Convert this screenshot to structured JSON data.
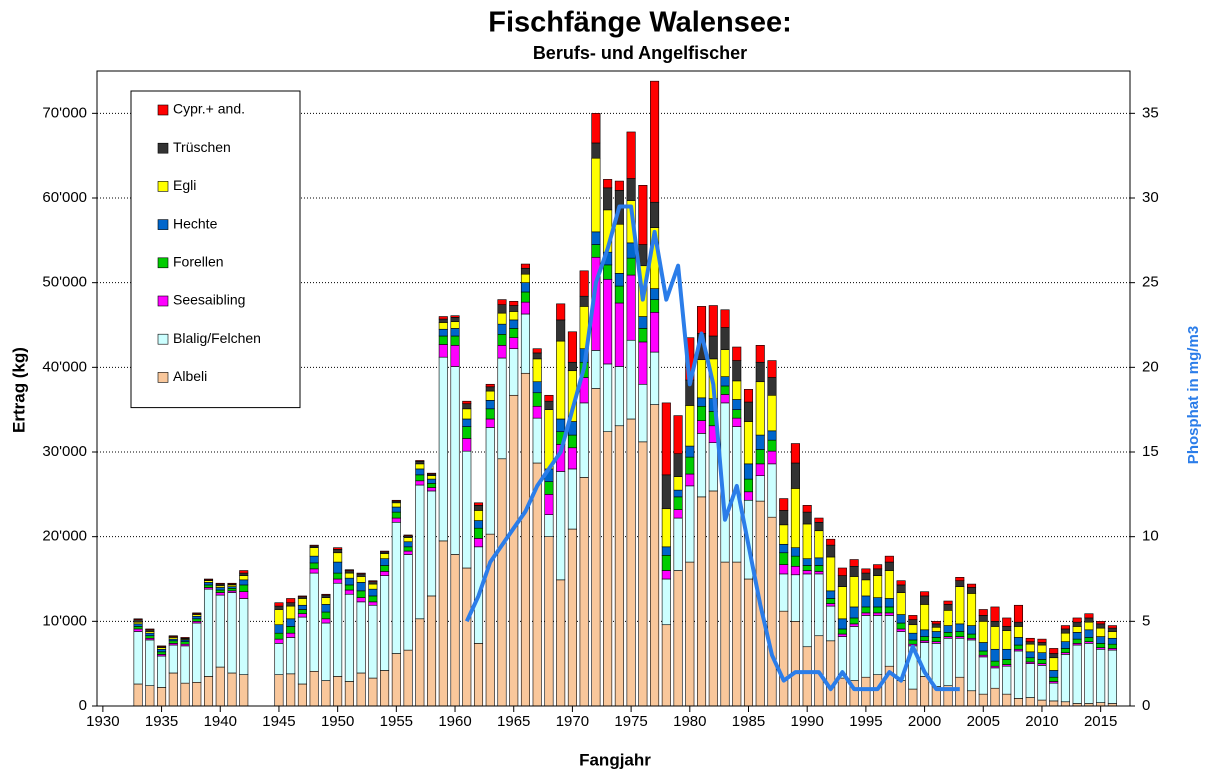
{
  "chart_data": {
    "type": "bar",
    "stacked": true,
    "title": "Fischfänge Walensee:",
    "subtitle": "Berufs- und Angelfischer",
    "x_label": "Fangjahr",
    "y_label": "Ertrag (kg)",
    "y2_label": "Phosphat in mg/m3",
    "x": [
      1933,
      1934,
      1935,
      1936,
      1937,
      1938,
      1939,
      1940,
      1941,
      1942,
      1945,
      1946,
      1947,
      1948,
      1949,
      1950,
      1951,
      1952,
      1953,
      1954,
      1955,
      1956,
      1957,
      1958,
      1959,
      1960,
      1961,
      1962,
      1963,
      1964,
      1965,
      1966,
      1967,
      1968,
      1969,
      1970,
      1971,
      1972,
      1973,
      1974,
      1975,
      1976,
      1977,
      1978,
      1979,
      1980,
      1981,
      1982,
      1983,
      1984,
      1985,
      1986,
      1987,
      1988,
      1989,
      1990,
      1991,
      1992,
      1993,
      1994,
      1995,
      1996,
      1997,
      1998,
      1999,
      2000,
      2001,
      2002,
      2003,
      2004,
      2005,
      2006,
      2007,
      2008,
      2009,
      2010,
      2011,
      2012,
      2013,
      2014,
      2015,
      2016
    ],
    "xlim": [
      1929.5,
      2017.5
    ],
    "xticks": [
      1930,
      1935,
      1940,
      1945,
      1950,
      1955,
      1960,
      1965,
      1970,
      1975,
      1980,
      1985,
      1990,
      1995,
      2000,
      2005,
      2010,
      2015
    ],
    "ylim": [
      0,
      75000
    ],
    "yticks": [
      0,
      {
        "value": 10000,
        "label": "10'000"
      },
      {
        "value": 20000,
        "label": "20'000"
      },
      {
        "value": 30000,
        "label": "30'000"
      },
      {
        "value": 40000,
        "label": "40'000"
      },
      {
        "value": 50000,
        "label": "50'000"
      },
      {
        "value": 60000,
        "label": "60'000"
      },
      {
        "value": 70000,
        "label": "70'000"
      }
    ],
    "y2lim": [
      0,
      37.5
    ],
    "y2ticks": [
      0,
      5,
      10,
      15,
      20,
      25,
      30,
      35
    ],
    "grid": true,
    "legend": "top-left",
    "series": [
      {
        "name": "Albeli",
        "color": "#f9c79b",
        "values": [
          2600,
          2400,
          2200,
          3900,
          2700,
          2800,
          3500,
          4600,
          3900,
          3700,
          3700,
          3800,
          2600,
          4100,
          3000,
          3500,
          2900,
          3900,
          3300,
          4200,
          6200,
          6600,
          10300,
          13000,
          19500,
          17900,
          16300,
          7400,
          20300,
          29200,
          36700,
          39300,
          28700,
          20000,
          14900,
          20900,
          27000,
          37500,
          32400,
          33100,
          33900,
          31200,
          35600,
          9600,
          16000,
          17000,
          24700,
          25400,
          17000,
          17000,
          15000,
          24200,
          22300,
          11200,
          10000,
          7000,
          8300,
          7700,
          3300,
          3000,
          3400,
          3700,
          4700,
          3000,
          2000,
          3500,
          2300,
          2400,
          3400,
          1800,
          1400,
          2100,
          1400,
          900,
          1000,
          700,
          600,
          500,
          300,
          300,
          400,
          300
        ]
      },
      {
        "name": "Blalig/Felchen",
        "color": "#ccffff",
        "values": [
          6200,
          5400,
          3700,
          3300,
          4400,
          7000,
          10300,
          8500,
          9500,
          9000,
          3700,
          4300,
          7900,
          11600,
          6800,
          11000,
          10300,
          8400,
          8600,
          11200,
          15500,
          11300,
          15800,
          12400,
          21700,
          22200,
          13800,
          11400,
          12600,
          11900,
          5500,
          7000,
          5300,
          2600,
          12800,
          7100,
          8800,
          4500,
          8000,
          7000,
          9300,
          6800,
          6200,
          5400,
          6200,
          9000,
          7500,
          5700,
          18800,
          16000,
          9300,
          3000,
          6300,
          4400,
          5500,
          8600,
          7300,
          4100,
          4900,
          6400,
          7300,
          7000,
          6000,
          5800,
          5100,
          4000,
          5100,
          5600,
          4600,
          6000,
          4400,
          2400,
          3300,
          5600,
          4000,
          4100,
          2100,
          5600,
          6900,
          7100,
          6300,
          6300
        ]
      },
      {
        "name": "Seesaibling",
        "color": "#ff00ff",
        "values": [
          300,
          200,
          200,
          200,
          200,
          200,
          200,
          300,
          200,
          800,
          500,
          500,
          400,
          500,
          500,
          500,
          500,
          500,
          400,
          500,
          500,
          400,
          500,
          400,
          1500,
          2500,
          1500,
          1000,
          1000,
          1500,
          1300,
          1400,
          1400,
          2400,
          3200,
          2500,
          3000,
          11000,
          10000,
          7500,
          7700,
          5000,
          4700,
          1000,
          1000,
          1400,
          1500,
          2000,
          1000,
          1000,
          1000,
          1400,
          1500,
          1100,
          1000,
          400,
          300,
          300,
          300,
          300,
          300,
          300,
          300,
          300,
          200,
          200,
          200,
          200,
          200,
          200,
          200,
          200,
          200,
          200,
          200,
          200,
          200,
          200,
          200,
          200,
          200,
          200
        ]
      },
      {
        "name": "Forellen",
        "color": "#00cc00",
        "values": [
          300,
          300,
          300,
          300,
          300,
          300,
          300,
          300,
          300,
          800,
          700,
          800,
          500,
          700,
          800,
          700,
          600,
          800,
          700,
          700,
          700,
          500,
          700,
          500,
          1000,
          1100,
          1400,
          1200,
          1200,
          1300,
          1100,
          1200,
          1600,
          1500,
          1500,
          1500,
          1800,
          1500,
          1700,
          2000,
          2000,
          1600,
          1500,
          1800,
          1500,
          2000,
          1700,
          1700,
          1000,
          1000,
          1500,
          1700,
          1300,
          1400,
          1200,
          600,
          700,
          600,
          600,
          700,
          700,
          700,
          700,
          700,
          500,
          500,
          500,
          500,
          600,
          500,
          500,
          600,
          600,
          500,
          500,
          500,
          500,
          500,
          500,
          500,
          500,
          500
        ]
      },
      {
        "name": "Hechte",
        "color": "#0066cc",
        "values": [
          300,
          300,
          300,
          200,
          200,
          300,
          300,
          300,
          200,
          600,
          1000,
          900,
          500,
          800,
          900,
          1300,
          800,
          1000,
          800,
          800,
          600,
          600,
          700,
          500,
          800,
          900,
          900,
          900,
          1000,
          1200,
          1000,
          1100,
          1300,
          1500,
          1500,
          1600,
          1600,
          1500,
          1500,
          1500,
          1800,
          1400,
          1300,
          1000,
          800,
          1300,
          1000,
          1500,
          1100,
          1200,
          1800,
          1700,
          1100,
          1000,
          1000,
          800,
          900,
          900,
          1200,
          1300,
          1300,
          1100,
          1000,
          1000,
          800,
          800,
          700,
          800,
          900,
          1000,
          1000,
          1400,
          1200,
          900,
          700,
          800,
          800,
          800,
          800,
          900,
          800,
          700
        ]
      },
      {
        "name": "Egli",
        "color": "#ffff00",
        "values": [
          200,
          200,
          200,
          200,
          100,
          200,
          200,
          200,
          200,
          500,
          1800,
          1500,
          800,
          1000,
          800,
          1100,
          600,
          700,
          600,
          600,
          500,
          500,
          600,
          400,
          800,
          800,
          1200,
          1200,
          1100,
          1300,
          1000,
          1000,
          2700,
          7000,
          9200,
          6000,
          5000,
          8700,
          5000,
          5800,
          5000,
          6000,
          7200,
          4500,
          1600,
          4800,
          4500,
          4700,
          3200,
          2200,
          5000,
          6300,
          4200,
          2300,
          7000,
          4100,
          3200,
          4000,
          3800,
          3600,
          1900,
          2600,
          3300,
          2600,
          1000,
          3000,
          500,
          1800,
          4400,
          3800,
          2500,
          2700,
          2200,
          1300,
          900,
          900,
          1500,
          1000,
          700,
          900,
          1000,
          800
        ]
      },
      {
        "name": "Trüschen",
        "color": "#333333",
        "values": [
          300,
          200,
          100,
          100,
          100,
          100,
          100,
          200,
          100,
          300,
          400,
          400,
          200,
          200,
          300,
          400,
          300,
          300,
          300,
          200,
          200,
          200,
          300,
          200,
          400,
          500,
          600,
          600,
          500,
          1000,
          700,
          700,
          700,
          1000,
          2500,
          1000,
          1200,
          1800,
          2600,
          4000,
          2600,
          2500,
          3000,
          4000,
          2700,
          3000,
          3100,
          2700,
          2600,
          2400,
          2300,
          2300,
          2100,
          1700,
          3000,
          1400,
          1000,
          1400,
          1300,
          1200,
          800,
          800,
          1000,
          900,
          600,
          1000,
          400,
          700,
          700,
          700,
          700,
          600,
          500,
          500,
          300,
          300,
          500,
          500,
          500,
          500,
          500,
          400
        ]
      },
      {
        "name": "Cypr.+ and.",
        "color": "#ff0000",
        "values": [
          100,
          100,
          100,
          100,
          100,
          100,
          100,
          100,
          100,
          300,
          400,
          500,
          100,
          100,
          100,
          200,
          100,
          100,
          100,
          100,
          100,
          100,
          100,
          100,
          300,
          200,
          300,
          300,
          300,
          600,
          500,
          500,
          500,
          700,
          1900,
          3600,
          3000,
          3500,
          1000,
          1100,
          5500,
          7000,
          14300,
          8500,
          4500,
          5000,
          3200,
          3600,
          2100,
          1600,
          1500,
          2000,
          2000,
          1400,
          2300,
          800,
          500,
          700,
          900,
          800,
          500,
          500,
          700,
          500,
          500,
          500,
          300,
          400,
          400,
          400,
          700,
          1700,
          1000,
          2000,
          400,
          400,
          600,
          400,
          500,
          500,
          300,
          300
        ]
      },
      {
        "type": "line",
        "axis": "y2",
        "color": "#2b7de9",
        "values": [
          null,
          null,
          null,
          null,
          null,
          null,
          null,
          null,
          null,
          null,
          null,
          null,
          null,
          null,
          null,
          null,
          null,
          null,
          null,
          null,
          null,
          null,
          null,
          null,
          null,
          null,
          5,
          6.5,
          8.5,
          9.5,
          10.5,
          11.5,
          13,
          14,
          15,
          17.5,
          20,
          25,
          27,
          29.5,
          29.5,
          24,
          28,
          24,
          26,
          19,
          22,
          19,
          11,
          13,
          9.5,
          6,
          3,
          1.5,
          2,
          2,
          2,
          1,
          2,
          1,
          1,
          1,
          2,
          1.5,
          3.5,
          2,
          1,
          1,
          1,
          null,
          null,
          null,
          null,
          null,
          null,
          null,
          null,
          null,
          null,
          null,
          null,
          null
        ]
      }
    ]
  }
}
